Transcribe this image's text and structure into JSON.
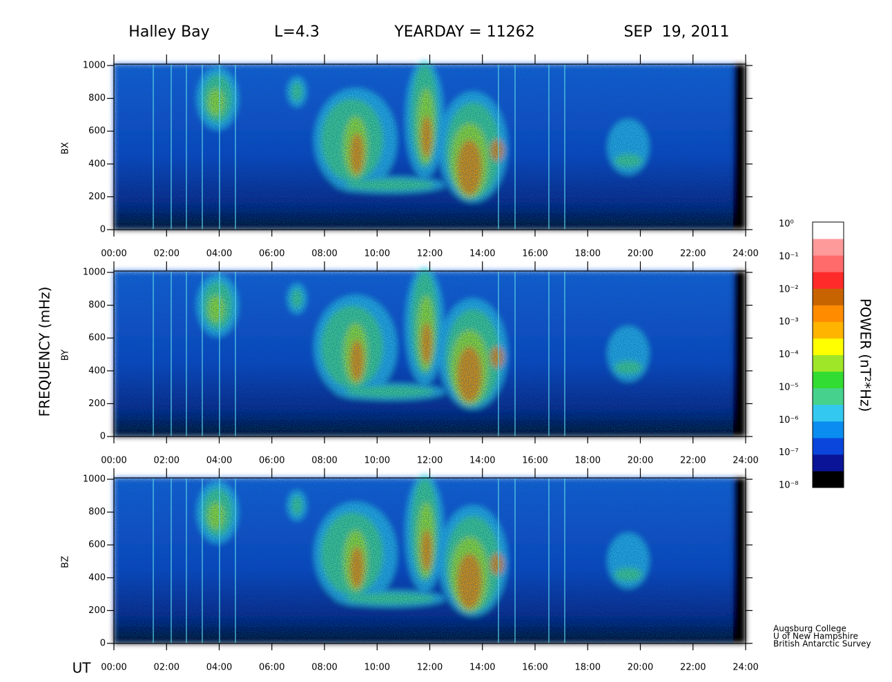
{
  "chart_data": {
    "type": "spectrogram",
    "station": "Halley Bay",
    "l_shell": "L=4.3",
    "yearday": "YEARDAY = 11262",
    "date": "SEP  19, 2011",
    "xlabel": "UT",
    "ylabel": "FREQUENCY (mHz)",
    "panels": [
      {
        "label": "BX"
      },
      {
        "label": "BY"
      },
      {
        "label": "BZ"
      }
    ],
    "xlim": [
      0,
      24
    ],
    "xticks": [
      {
        "value": 0,
        "label": "00:00"
      },
      {
        "value": 2,
        "label": "02:00"
      },
      {
        "value": 4,
        "label": "04:00"
      },
      {
        "value": 6,
        "label": "06:00"
      },
      {
        "value": 8,
        "label": "08:00"
      },
      {
        "value": 10,
        "label": "10:00"
      },
      {
        "value": 12,
        "label": "12:00"
      },
      {
        "value": 14,
        "label": "14:00"
      },
      {
        "value": 16,
        "label": "16:00"
      },
      {
        "value": 18,
        "label": "18:00"
      },
      {
        "value": 20,
        "label": "20:00"
      },
      {
        "value": 22,
        "label": "22:00"
      },
      {
        "value": 24,
        "label": "24:00"
      }
    ],
    "ylim": [
      0,
      1000
    ],
    "yticks": [
      0,
      200,
      400,
      600,
      800,
      1000
    ],
    "colorbar": {
      "label": "POWER (nT²*Hz)",
      "log": true,
      "lim": [
        1e-08,
        1
      ],
      "ticks": [
        {
          "value": 1,
          "label": "10⁰"
        },
        {
          "value": 0.1,
          "label": "10⁻¹"
        },
        {
          "value": 0.01,
          "label": "10⁻²"
        },
        {
          "value": 0.001,
          "label": "10⁻³"
        },
        {
          "value": 0.0001,
          "label": "10⁻⁴"
        },
        {
          "value": 1e-05,
          "label": "10⁻⁵"
        },
        {
          "value": 1e-06,
          "label": "10⁻⁶"
        },
        {
          "value": 1e-07,
          "label": "10⁻⁷"
        },
        {
          "value": 1e-08,
          "label": "10⁻⁸"
        }
      ],
      "colors": [
        "#000000",
        "#0a1496",
        "#0a46dc",
        "#0a8cf0",
        "#32c8f0",
        "#46d28c",
        "#32dc32",
        "#a0e628",
        "#ffff00",
        "#ffb400",
        "#ff8c00",
        "#c86400",
        "#ff2a2a",
        "#ff6a6a",
        "#ff9a9a",
        "#ffffff"
      ]
    },
    "credits": [
      "Augsburg College",
      "U of New Hampshire",
      "British Antarctic Survey"
    ]
  }
}
